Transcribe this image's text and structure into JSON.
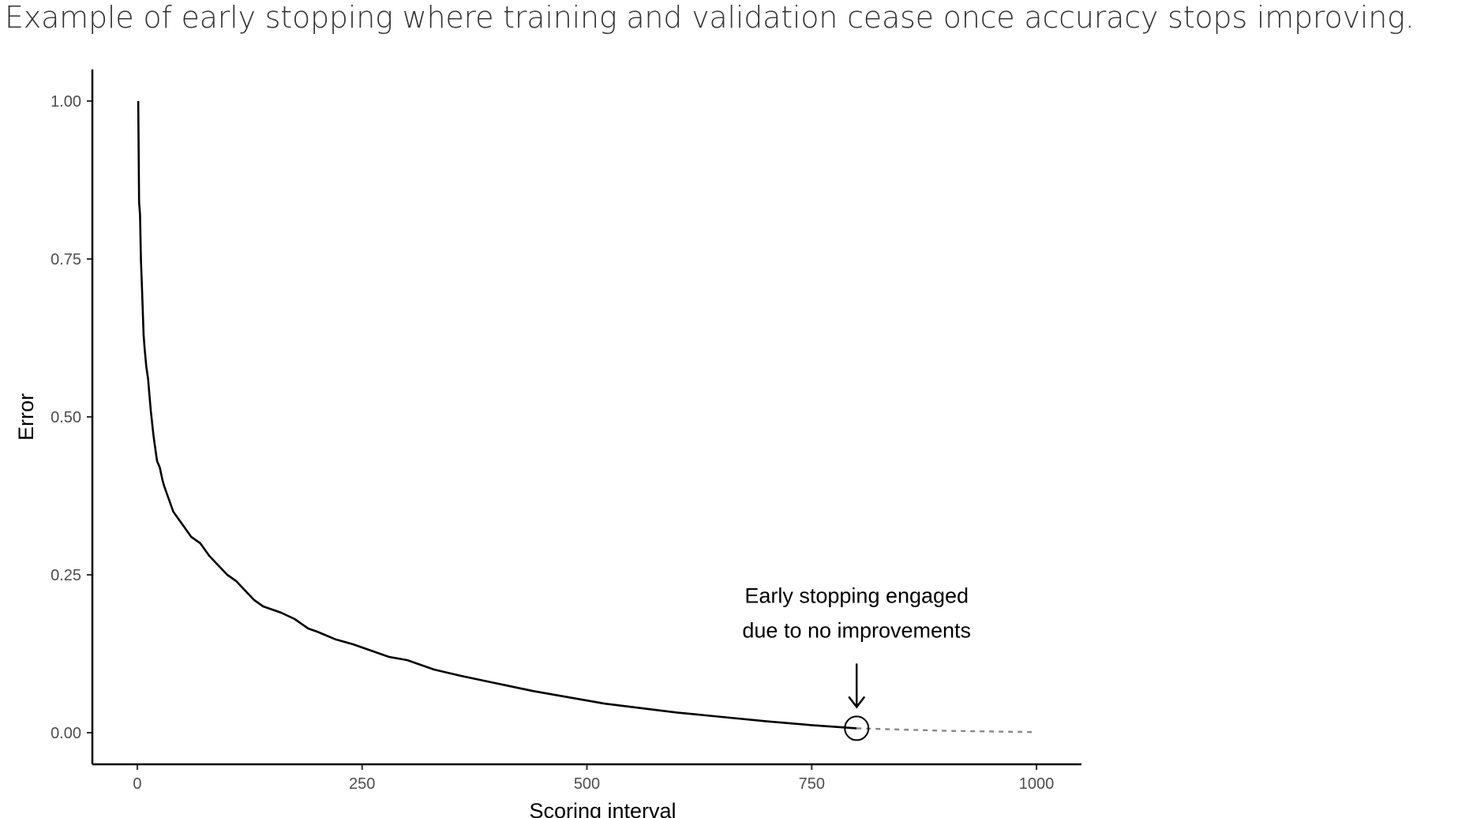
{
  "page": {
    "caption": "Example of early stopping where training and validation cease once accuracy stops improving."
  },
  "chart_data": {
    "type": "line",
    "title": "",
    "xlabel": "Scoring interval",
    "ylabel": "Error",
    "xlim": [
      -50,
      1050
    ],
    "ylim": [
      -0.05,
      1.05
    ],
    "x_ticks": [
      0,
      250,
      500,
      750,
      1000
    ],
    "x_tick_labels": [
      "0",
      "250",
      "500",
      "750",
      "1000"
    ],
    "y_ticks": [
      0,
      0.25,
      0.5,
      0.75,
      1.0
    ],
    "y_tick_labels": [
      "0.00",
      "0.25",
      "0.50",
      "0.75",
      "1.00"
    ],
    "grid": false,
    "series": [
      {
        "style": "solid",
        "color": "#000000",
        "x": [
          1,
          2,
          3,
          4,
          5,
          7,
          8,
          10,
          12,
          15,
          18,
          20,
          22,
          25,
          28,
          30,
          35,
          40,
          45,
          50,
          55,
          60,
          65,
          70,
          80,
          90,
          100,
          110,
          120,
          130,
          140,
          150,
          160,
          175,
          190,
          200,
          220,
          240,
          260,
          280,
          300,
          330,
          360,
          400,
          440,
          480,
          520,
          560,
          600,
          650,
          700,
          750,
          800
        ],
        "y": [
          1.0,
          0.84,
          0.82,
          0.75,
          0.71,
          0.63,
          0.61,
          0.58,
          0.56,
          0.51,
          0.47,
          0.45,
          0.43,
          0.42,
          0.4,
          0.39,
          0.37,
          0.35,
          0.34,
          0.33,
          0.32,
          0.31,
          0.305,
          0.3,
          0.28,
          0.265,
          0.25,
          0.24,
          0.225,
          0.21,
          0.2,
          0.195,
          0.19,
          0.18,
          0.165,
          0.16,
          0.148,
          0.14,
          0.13,
          0.12,
          0.115,
          0.1,
          0.09,
          0.078,
          0.066,
          0.056,
          0.046,
          0.039,
          0.032,
          0.025,
          0.018,
          0.012,
          0.007
        ]
      },
      {
        "style": "dashed",
        "color": "#888888",
        "x": [
          800,
          850,
          900,
          950,
          1000
        ],
        "y": [
          0.007,
          0.005,
          0.003,
          0.002,
          0.001
        ]
      }
    ],
    "annotation": {
      "lines": [
        "Early stopping engaged",
        "due to no improvements"
      ],
      "point": {
        "x": 800,
        "y": 0.007
      }
    }
  }
}
